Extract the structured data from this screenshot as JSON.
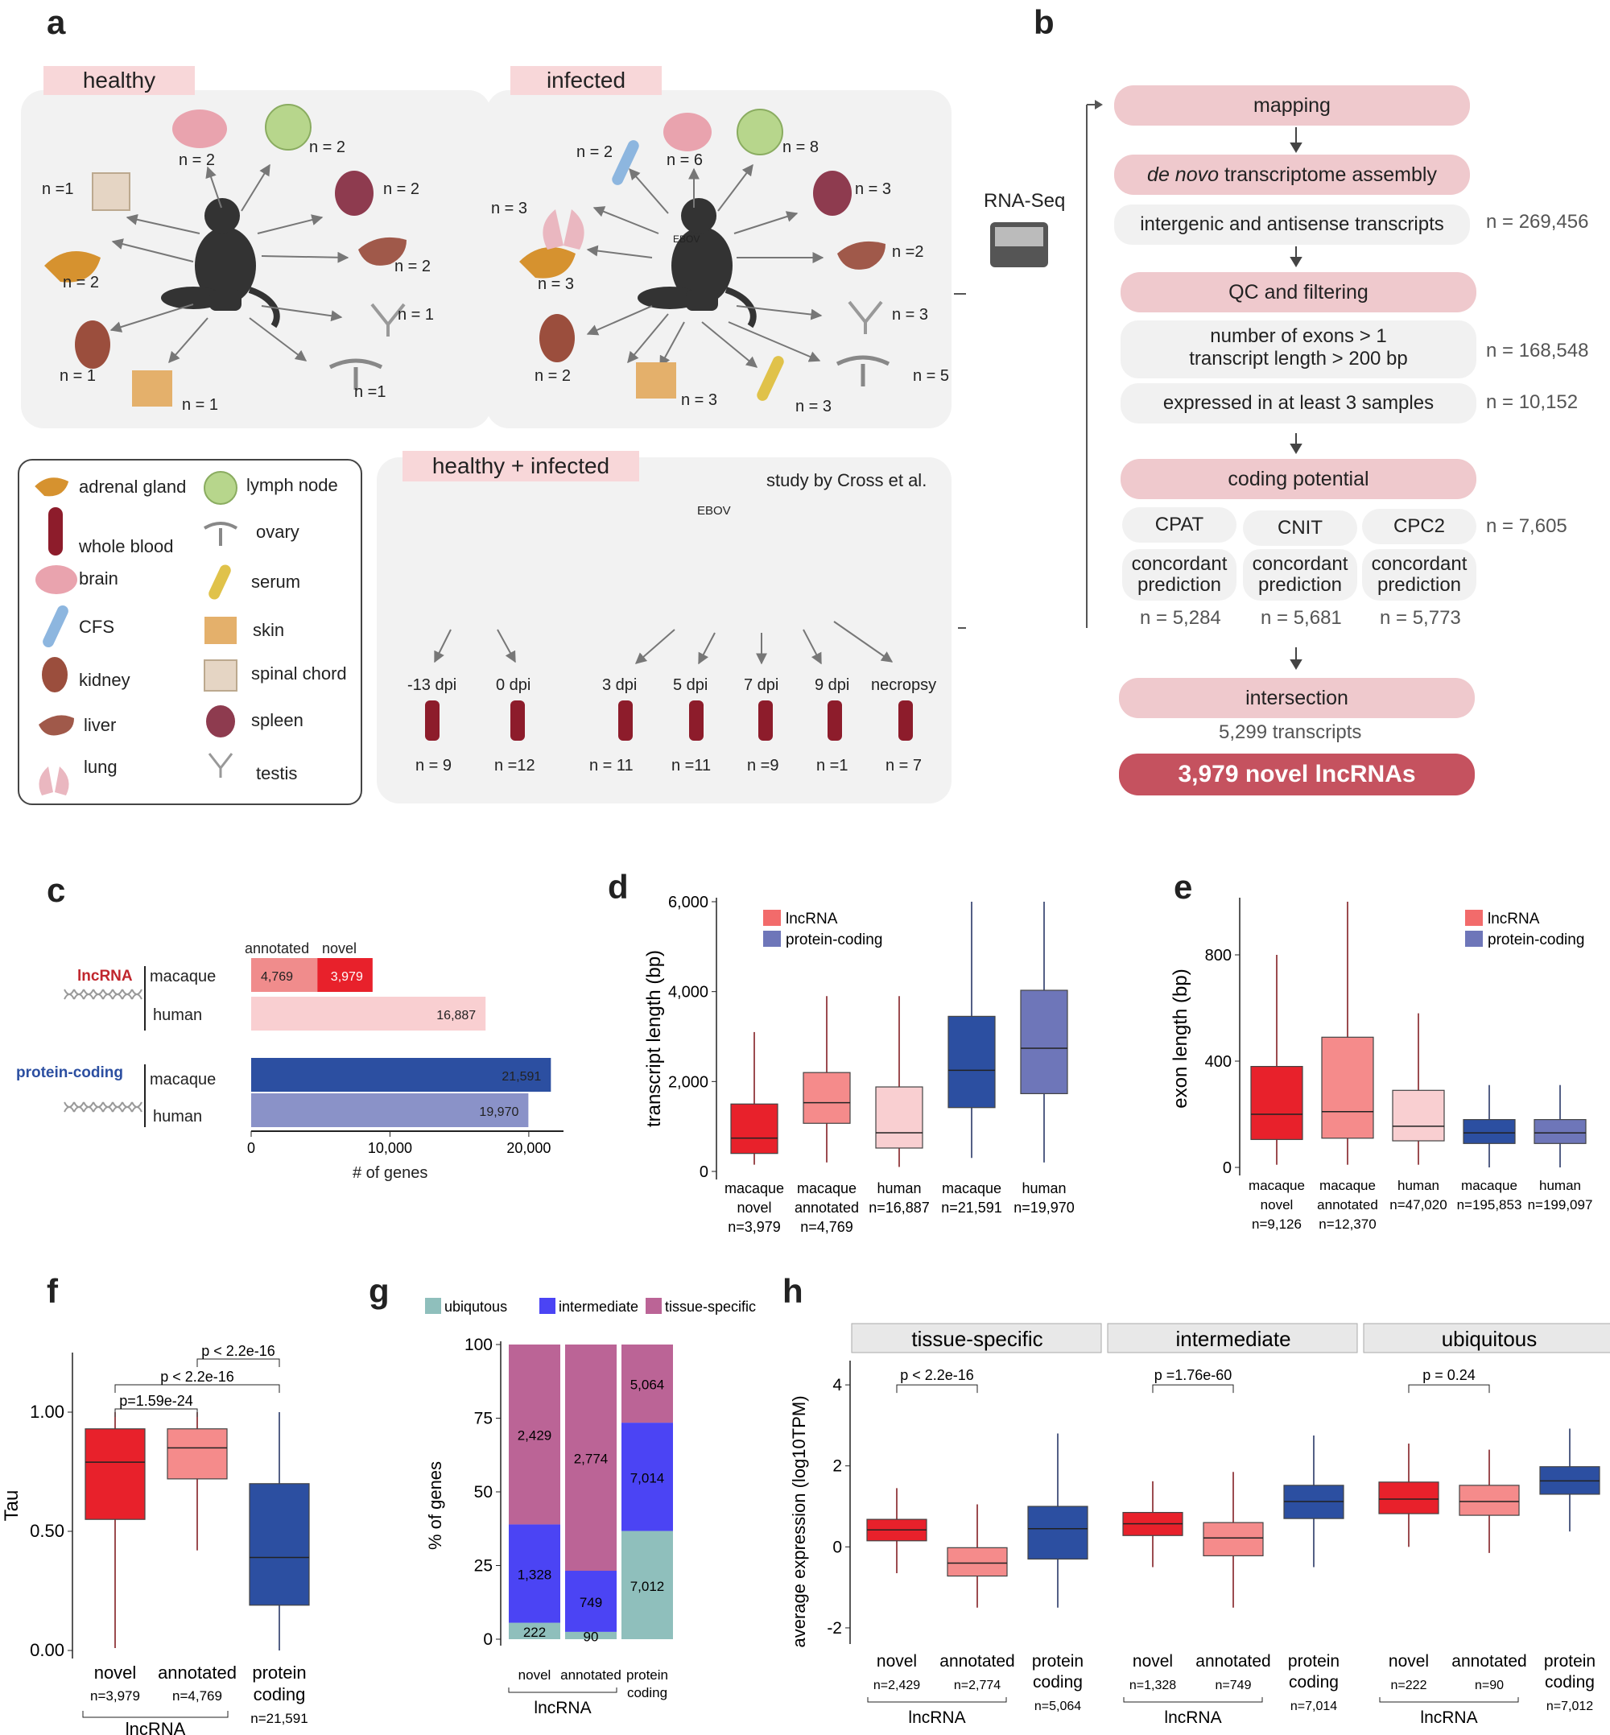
{
  "panels": {
    "a": "a",
    "b": "b",
    "c": "c",
    "d": "d",
    "e": "e",
    "f": "f",
    "g": "g",
    "h": "h"
  },
  "a": {
    "healthy": {
      "tag": "healthy",
      "counts": [
        "n =1",
        "n = 2",
        "n = 2",
        "n = 2",
        "n = 2",
        "n = 1",
        "n = 2",
        "n = 1",
        "n = 1"
      ]
    },
    "infected": {
      "tag": "infected",
      "virus": "EBOV",
      "counts": [
        "n = 2",
        "n = 6",
        "n = 8",
        "n = 3",
        "n = 3",
        "n = 3",
        "n =2",
        "n = 3",
        "n = 2",
        "n = 3",
        "n = 3",
        "n = 5"
      ]
    },
    "legend": [
      "adrenal gland",
      "lymph node",
      "whole blood",
      "ovary",
      "brain",
      "serum",
      "CFS",
      "skin",
      "kidney",
      "spinal chord",
      "liver",
      "spleen",
      "lung",
      "testis"
    ],
    "combined": {
      "tag": "healthy + infected",
      "study": "study by Cross et al.",
      "virus": "EBOV",
      "timepoints": [
        "-13 dpi",
        "0 dpi",
        "3 dpi",
        "5 dpi",
        "7 dpi",
        "9 dpi",
        "necropsy"
      ],
      "counts": [
        "n = 9",
        "n =12",
        "n = 11",
        "n =11",
        "n =9",
        "n =1",
        "n = 7"
      ]
    },
    "rnaseq": "RNA-Seq"
  },
  "b": {
    "mapping": "mapping",
    "denovo_italic": "de novo",
    "denovo_rest": " transcriptome assembly",
    "intergenic": "intergenic and antisense transcripts",
    "n1": "n = 269,456",
    "qc": "QC and filtering",
    "filter1": "number of exons > 1",
    "filter2": "transcript length > 200 bp",
    "n2": "n = 168,548",
    "expressed": "expressed in at least 3 samples",
    "n3": "n = 10,152",
    "coding": "coding potential",
    "tools": [
      "CPAT",
      "CNIT",
      "CPC2"
    ],
    "concordant": "concordant",
    "prediction": "prediction",
    "tool_counts": [
      "n = 5,284",
      "n = 5,681",
      "n = 5,773"
    ],
    "n4": "n = 7,605",
    "intersection": "intersection",
    "transcripts": "5,299  transcripts",
    "final": "3,979 novel lncRNAs"
  },
  "c": {
    "lncrna_label": "lncRNA",
    "pc_label": "protein-coding",
    "col_annotated": "annotated",
    "col_novel": "novel",
    "rows": [
      "macaque",
      "human",
      "macaque",
      "human"
    ],
    "xlabel": "# of genes",
    "chart_data": {
      "type": "bar",
      "orientation": "horizontal",
      "stacked": true,
      "categories": [
        "lncRNA macaque",
        "lncRNA human",
        "protein-coding macaque",
        "protein-coding human"
      ],
      "series": [
        {
          "name": "annotated",
          "values": [
            4769,
            16887,
            21591,
            19970
          ]
        },
        {
          "name": "novel",
          "values": [
            3979,
            0,
            0,
            0
          ]
        }
      ],
      "labels": [
        "4,769",
        "3,979",
        "16,887",
        "21,591",
        "19,970"
      ],
      "ticks": [
        "0",
        "10,000",
        "20,000"
      ],
      "xlim": [
        0,
        22500
      ],
      "colors": {
        "annotated": "#f08c8c",
        "novel": "#e8212b",
        "human_lnc": "#f9cfd1",
        "macaque_pc": "#2c4fa1",
        "human_pc": "#8a92c8"
      }
    }
  },
  "d": {
    "ylabel": "transcript length (bp)",
    "legend": [
      "lncRNA",
      "protein-coding"
    ],
    "cats": [
      [
        "macaque",
        "novel",
        "n=3,979"
      ],
      [
        "macaque",
        "annotated",
        "n=4,769"
      ],
      [
        "human",
        "n=16,887",
        ""
      ],
      [
        "macaque",
        "n=21,591",
        ""
      ],
      [
        "human",
        "n=19,970",
        ""
      ]
    ],
    "ticks": [
      "0",
      "2,000",
      "4,000",
      "6,000"
    ],
    "chart_data": {
      "type": "box",
      "ylim": [
        0,
        6000
      ],
      "boxes": [
        {
          "min": 150,
          "q1": 400,
          "med": 740,
          "q3": 1500,
          "max": 3100,
          "color": "#e8212b"
        },
        {
          "min": 200,
          "q1": 1070,
          "med": 1530,
          "q3": 2200,
          "max": 3900,
          "color": "#f58b8b"
        },
        {
          "min": 100,
          "q1": 520,
          "med": 860,
          "q3": 1880,
          "max": 3900,
          "color": "#f9cfd1"
        },
        {
          "min": 300,
          "q1": 1420,
          "med": 2250,
          "q3": 3450,
          "max": 6000,
          "color": "#2c4fa1"
        },
        {
          "min": 200,
          "q1": 1730,
          "med": 2740,
          "q3": 4030,
          "max": 6000,
          "color": "#6e76b9"
        }
      ]
    }
  },
  "e": {
    "ylabel": "exon length (bp)",
    "legend": [
      "lncRNA",
      "protein-coding"
    ],
    "cats": [
      [
        "macaque",
        "novel",
        "n=9,126"
      ],
      [
        "macaque",
        "annotated",
        "n=12,370"
      ],
      [
        "human",
        "n=47,020",
        ""
      ],
      [
        "macaque",
        "n=195,853",
        ""
      ],
      [
        "human",
        "n=199,097",
        ""
      ]
    ],
    "ticks": [
      "0",
      "400",
      "800"
    ],
    "chart_data": {
      "type": "box",
      "ylim": [
        0,
        1000
      ],
      "boxes": [
        {
          "min": 10,
          "q1": 105,
          "med": 200,
          "q3": 380,
          "max": 800,
          "color": "#e8212b"
        },
        {
          "min": 10,
          "q1": 110,
          "med": 210,
          "q3": 490,
          "max": 1000,
          "color": "#f58b8b"
        },
        {
          "min": 10,
          "q1": 100,
          "med": 155,
          "q3": 290,
          "max": 580,
          "color": "#f9cfd1"
        },
        {
          "min": 0,
          "q1": 90,
          "med": 130,
          "q3": 180,
          "max": 310,
          "color": "#2c4fa1"
        },
        {
          "min": 0,
          "q1": 90,
          "med": 130,
          "q3": 180,
          "max": 310,
          "color": "#6e76b9"
        }
      ]
    }
  },
  "f": {
    "ylabel": "Tau",
    "cats": [
      [
        "novel",
        "n=3,979"
      ],
      [
        "annotated",
        "n=4,769"
      ],
      [
        "protein",
        "coding",
        "n=21,591"
      ]
    ],
    "group": "lncRNA",
    "pvals": [
      "p=1.59e-24",
      "p < 2.2e-16",
      "p < 2.2e-16"
    ],
    "ticks": [
      "0.00",
      "0.50",
      "1.00"
    ],
    "chart_data": {
      "type": "box",
      "ylim": [
        0,
        1.25
      ],
      "boxes": [
        {
          "min": 0.01,
          "q1": 0.55,
          "med": 0.79,
          "q3": 0.93,
          "max": 1.0,
          "color": "#e8212b"
        },
        {
          "min": 0.42,
          "q1": 0.72,
          "med": 0.85,
          "q3": 0.93,
          "max": 1.0,
          "color": "#f58b8b"
        },
        {
          "min": 0.0,
          "q1": 0.19,
          "med": 0.39,
          "q3": 0.7,
          "max": 1.0,
          "color": "#2c4fa1"
        }
      ]
    }
  },
  "g": {
    "ylabel": "% of genes",
    "legend": [
      "ubiqutous",
      "intermediate",
      "tissue-specific"
    ],
    "cats": [
      "novel",
      "annotated",
      "protein",
      "coding"
    ],
    "group": "lncRNA",
    "ticks": [
      "0",
      "25",
      "50",
      "75",
      "100"
    ],
    "chart_data": {
      "type": "bar",
      "stacked": true,
      "percent": true,
      "categories": [
        "novel",
        "annotated",
        "protein coding"
      ],
      "series": [
        {
          "name": "ubiqutous",
          "values": [
            222,
            90,
            7012
          ],
          "color": "#8fbfbc"
        },
        {
          "name": "intermediate",
          "values": [
            1328,
            749,
            7014
          ],
          "color": "#4b44f4"
        },
        {
          "name": "tissue-specific",
          "values": [
            2429,
            2774,
            5064
          ],
          "color": "#bb6496"
        }
      ],
      "labels": [
        [
          "222",
          "1,328",
          "2,429"
        ],
        [
          "90",
          "749",
          "2,774"
        ],
        [
          "7,012",
          "7,014",
          "5,064"
        ]
      ]
    }
  },
  "h": {
    "ylabel": "average expression (log10TPM)",
    "facets": [
      "tissue-specific",
      "intermediate",
      "ubiquitous"
    ],
    "cats": [
      "novel",
      "annotated",
      "protein",
      "coding"
    ],
    "group": "lncRNA",
    "pvals": [
      "p < 2.2e-16",
      "p =1.76e-60",
      "p = 0.24"
    ],
    "ns": [
      [
        "n=2,429",
        "n=2,774",
        "n=5,064"
      ],
      [
        "n=1,328",
        "n=749",
        "n=7,014"
      ],
      [
        "n=222",
        "n=90",
        "n=7,012"
      ]
    ],
    "ticks": [
      "-2",
      "0",
      "2",
      "4"
    ],
    "chart_data": {
      "type": "box",
      "ylim": [
        -2.2,
        4.4
      ],
      "facets": [
        [
          {
            "min": -0.65,
            "q1": 0.15,
            "med": 0.42,
            "q3": 0.68,
            "max": 1.45,
            "color": "#e8212b"
          },
          {
            "min": -1.5,
            "q1": -0.72,
            "med": -0.4,
            "q3": -0.02,
            "max": 1.05,
            "color": "#f58b8b"
          },
          {
            "min": -1.5,
            "q1": -0.3,
            "med": 0.45,
            "q3": 1.0,
            "max": 2.8,
            "color": "#2c4fa1"
          }
        ],
        [
          {
            "min": -0.5,
            "q1": 0.28,
            "med": 0.57,
            "q3": 0.85,
            "max": 1.62,
            "color": "#e8212b"
          },
          {
            "min": -1.5,
            "q1": -0.22,
            "med": 0.22,
            "q3": 0.6,
            "max": 1.85,
            "color": "#f58b8b"
          },
          {
            "min": -0.5,
            "q1": 0.7,
            "med": 1.12,
            "q3": 1.52,
            "max": 2.75,
            "color": "#2c4fa1"
          }
        ],
        [
          {
            "min": 0.0,
            "q1": 0.82,
            "med": 1.18,
            "q3": 1.6,
            "max": 2.55,
            "color": "#e8212b"
          },
          {
            "min": -0.15,
            "q1": 0.78,
            "med": 1.12,
            "q3": 1.52,
            "max": 2.4,
            "color": "#f58b8b"
          },
          {
            "min": 0.38,
            "q1": 1.3,
            "med": 1.63,
            "q3": 1.98,
            "max": 2.92,
            "color": "#2c4fa1"
          }
        ]
      ]
    }
  }
}
